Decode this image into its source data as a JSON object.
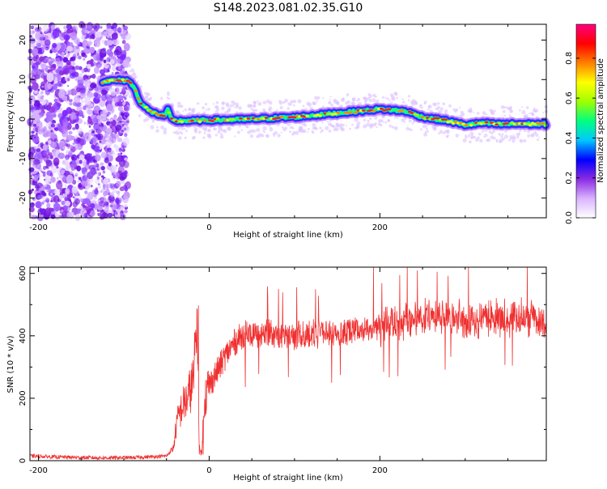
{
  "title": "S148.2023.081.02.35.G10",
  "colors": {
    "snr_line": "#f03030",
    "axis": "#000000",
    "spectrogram_bg": "#ffffff"
  },
  "chart_data": [
    {
      "type": "heatmap",
      "xlabel": "Height of straight line (km)",
      "ylabel": "Frequency (Hz)",
      "xlim": [
        -210,
        395
      ],
      "ylim": [
        -25,
        24
      ],
      "xticks": [
        -200,
        0,
        200
      ],
      "yticks": [
        20,
        10,
        0,
        -10,
        -20
      ],
      "colorbar": {
        "label": "Normalized spectral amplitude",
        "range": [
          0.0,
          0.97
        ],
        "ticks": [
          0.0,
          0.2,
          0.4,
          0.6,
          0.8
        ],
        "colors": [
          "#ffffff",
          "#d9b3ff",
          "#8a2be2",
          "#0000ff",
          "#00c8ff",
          "#00ff80",
          "#a0ff00",
          "#ffff00",
          "#ff8000",
          "#ff0000",
          "#ff0080"
        ]
      },
      "ridge": {
        "x": [
          -125,
          -110,
          -95,
          -88,
          -80,
          -70,
          -60,
          -52,
          -48,
          -45,
          -40,
          0,
          50,
          100,
          150,
          200,
          230,
          250,
          280,
          300,
          320,
          340,
          360,
          395
        ],
        "frequency": [
          9.5,
          9.8,
          9.8,
          8,
          4,
          2,
          1.2,
          0.8,
          2.5,
          0,
          -0.5,
          -0.3,
          0,
          0.5,
          1.5,
          2.5,
          2,
          0.5,
          -0.5,
          -1.5,
          -1,
          -1.3,
          -1.2,
          -1.3
        ]
      }
    },
    {
      "type": "line",
      "xlabel": "Height of straight line (km)",
      "ylabel": "SNR (10 * v/v)",
      "xlim": [
        -210,
        395
      ],
      "ylim": [
        0,
        620
      ],
      "xticks": [
        -200,
        0,
        200
      ],
      "yticks": [
        0,
        200,
        400,
        600
      ],
      "series": [
        {
          "x": [
            -210,
            -180,
            -150,
            -120,
            -90,
            -70,
            -50,
            -42,
            -38,
            -35,
            -30,
            -25,
            -22,
            -18,
            -14,
            -12,
            -10,
            -8,
            -6,
            -4,
            0,
            10,
            20,
            30,
            40,
            60,
            80,
            100,
            120,
            150,
            180,
            200,
            220,
            250,
            280,
            300,
            330,
            360,
            395
          ],
          "values": [
            15,
            12,
            10,
            9,
            10,
            12,
            15,
            40,
            120,
            150,
            180,
            200,
            230,
            260,
            480,
            80,
            20,
            60,
            200,
            210,
            240,
            290,
            340,
            380,
            405,
            410,
            405,
            400,
            405,
            410,
            420,
            430,
            440,
            455,
            460,
            450,
            455,
            460,
            445
          ]
        }
      ]
    }
  ]
}
